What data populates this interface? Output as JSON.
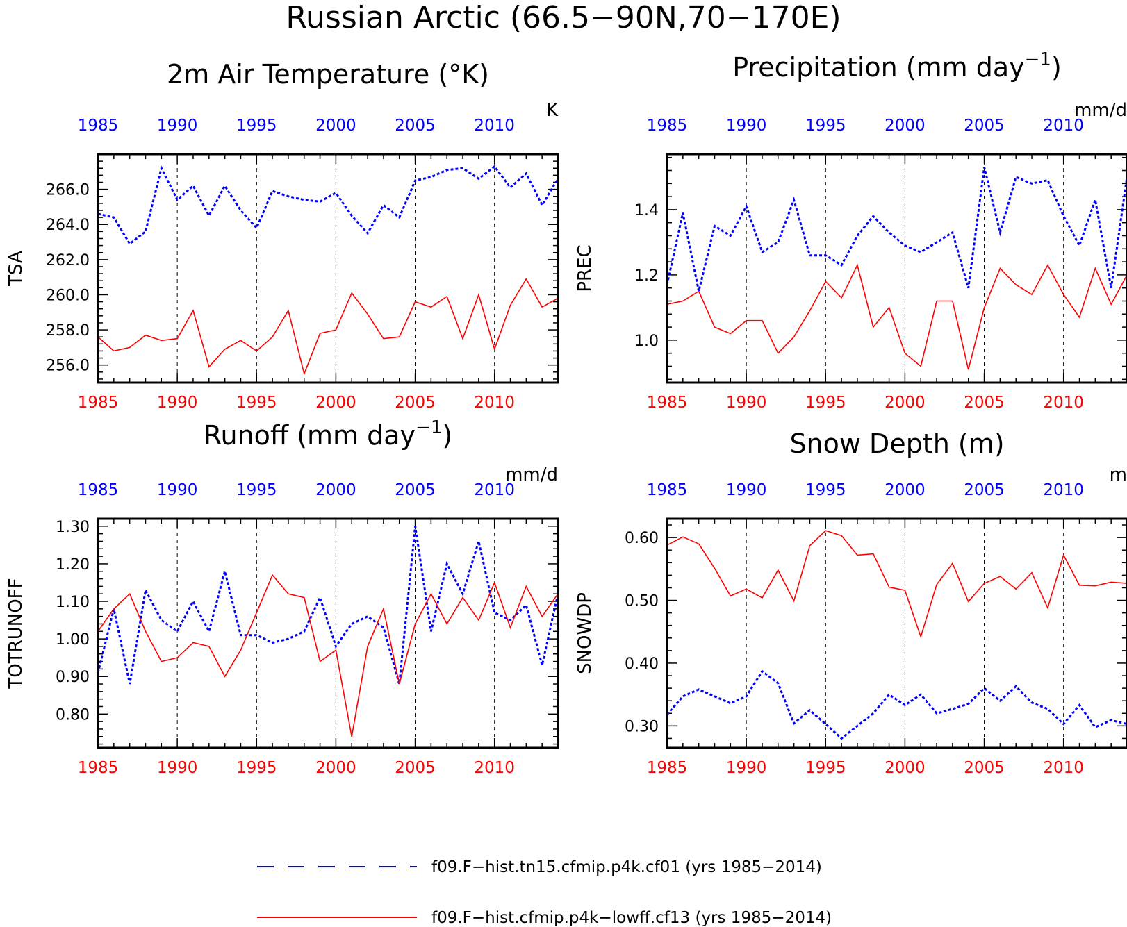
{
  "figure": {
    "title": "Russian Arctic (66.5−90N,70−170E)"
  },
  "colors": {
    "blue": "#0000ff",
    "red": "#ff0000",
    "axis": "#000000"
  },
  "legend": [
    {
      "label": "f09.F−hist.tn15.cfmip.p4k.cf01 (yrs 1985−2014)",
      "color": "#0000ff",
      "style": "dashed"
    },
    {
      "label": "f09.F−hist.cfmip.p4k−lowff.cf13 (yrs 1985−2014)",
      "color": "#ff0000",
      "style": "solid"
    }
  ],
  "chart_data": [
    {
      "type": "line",
      "title": "2m Air Temperature (°K)",
      "unit": "K",
      "ylabel": "TSA",
      "xlim": [
        1985,
        2014
      ],
      "ylim": [
        255.0,
        268.0
      ],
      "yticks": [
        256.0,
        258.0,
        260.0,
        262.0,
        264.0,
        266.0
      ],
      "ytick_labels": [
        "256.0",
        "258.0",
        "260.0",
        "262.0",
        "264.0",
        "266.0"
      ],
      "xticks": [
        1985,
        1990,
        1995,
        2000,
        2005,
        2010
      ],
      "xtick_labels": [
        "1985",
        "1990",
        "1995",
        "2000",
        "2005",
        "2010"
      ],
      "grid_x": [
        1990,
        1995,
        2000,
        2005,
        2010
      ],
      "x": [
        1985,
        1986,
        1987,
        1988,
        1989,
        1990,
        1991,
        1992,
        1993,
        1994,
        1995,
        1996,
        1997,
        1998,
        1999,
        2000,
        2001,
        2002,
        2003,
        2004,
        2005,
        2006,
        2007,
        2008,
        2009,
        2010,
        2011,
        2012,
        2013,
        2014
      ],
      "series": [
        {
          "color": "blue",
          "style": "dashed",
          "values": [
            264.6,
            264.4,
            262.9,
            263.6,
            267.2,
            265.4,
            266.2,
            264.5,
            266.2,
            264.8,
            263.8,
            265.9,
            265.6,
            265.4,
            265.3,
            265.8,
            264.5,
            263.5,
            265.1,
            264.4,
            266.5,
            266.7,
            267.1,
            267.2,
            266.6,
            267.3,
            266.1,
            266.9,
            265.1,
            266.6
          ]
        },
        {
          "color": "red",
          "style": "solid",
          "values": [
            257.6,
            256.8,
            257.0,
            257.7,
            257.4,
            257.5,
            259.1,
            255.9,
            256.9,
            257.4,
            256.8,
            257.6,
            259.1,
            255.5,
            257.8,
            258.0,
            260.1,
            258.9,
            257.5,
            257.6,
            259.6,
            259.3,
            259.9,
            257.5,
            260.0,
            256.9,
            259.4,
            260.9,
            259.3,
            259.8
          ]
        }
      ]
    },
    {
      "type": "line",
      "title": "Precipitation (mm day",
      "title_sup": "−1",
      "title_end": ")",
      "unit": "mm/d",
      "ylabel": "PREC",
      "xlim": [
        1985,
        2014
      ],
      "ylim": [
        0.87,
        1.57
      ],
      "yticks": [
        1.0,
        1.2,
        1.4
      ],
      "ytick_labels": [
        "1.0",
        "1.2",
        "1.4"
      ],
      "xticks": [
        1985,
        1990,
        1995,
        2000,
        2005,
        2010
      ],
      "xtick_labels": [
        "1985",
        "1990",
        "1995",
        "2000",
        "2005",
        "2010"
      ],
      "grid_x": [
        1990,
        1995,
        2000,
        2005,
        2010
      ],
      "x": [
        1985,
        1986,
        1987,
        1988,
        1989,
        1990,
        1991,
        1992,
        1993,
        1994,
        1995,
        1996,
        1997,
        1998,
        1999,
        2000,
        2001,
        2002,
        2003,
        2004,
        2005,
        2006,
        2007,
        2008,
        2009,
        2010,
        2011,
        2012,
        2013,
        2014
      ],
      "series": [
        {
          "color": "blue",
          "style": "dashed",
          "values": [
            1.17,
            1.39,
            1.15,
            1.35,
            1.32,
            1.41,
            1.27,
            1.3,
            1.43,
            1.26,
            1.26,
            1.23,
            1.32,
            1.38,
            1.33,
            1.29,
            1.27,
            1.3,
            1.33,
            1.16,
            1.53,
            1.33,
            1.5,
            1.48,
            1.49,
            1.38,
            1.29,
            1.43,
            1.16,
            1.5
          ]
        },
        {
          "color": "red",
          "style": "solid",
          "values": [
            1.11,
            1.12,
            1.15,
            1.04,
            1.02,
            1.06,
            1.06,
            0.96,
            1.01,
            1.09,
            1.18,
            1.13,
            1.23,
            1.04,
            1.1,
            0.96,
            0.92,
            1.12,
            1.12,
            0.91,
            1.1,
            1.22,
            1.17,
            1.14,
            1.23,
            1.14,
            1.07,
            1.22,
            1.11,
            1.2
          ]
        }
      ]
    },
    {
      "type": "line",
      "title": "Runoff (mm day",
      "title_sup": "−1",
      "title_end": ")",
      "unit": "mm/d",
      "ylabel": "TOTRUNOFF",
      "xlim": [
        1985,
        2014
      ],
      "ylim": [
        0.71,
        1.32
      ],
      "yticks": [
        0.8,
        0.9,
        1.0,
        1.1,
        1.2,
        1.3
      ],
      "ytick_labels": [
        "0.80",
        "0.90",
        "1.00",
        "1.10",
        "1.20",
        "1.30"
      ],
      "xticks": [
        1985,
        1990,
        1995,
        2000,
        2005,
        2010
      ],
      "xtick_labels": [
        "1985",
        "1990",
        "1995",
        "2000",
        "2005",
        "2010"
      ],
      "grid_x": [
        1990,
        1995,
        2000,
        2005,
        2010
      ],
      "x": [
        1985,
        1986,
        1987,
        1988,
        1989,
        1990,
        1991,
        1992,
        1993,
        1994,
        1995,
        1996,
        1997,
        1998,
        1999,
        2000,
        2001,
        2002,
        2003,
        2004,
        2005,
        2006,
        2007,
        2008,
        2009,
        2010,
        2011,
        2012,
        2013,
        2014
      ],
      "series": [
        {
          "color": "blue",
          "style": "dashed",
          "values": [
            0.91,
            1.08,
            0.88,
            1.13,
            1.05,
            1.02,
            1.1,
            1.02,
            1.18,
            1.01,
            1.01,
            0.99,
            1.0,
            1.02,
            1.11,
            0.98,
            1.04,
            1.06,
            1.03,
            0.88,
            1.3,
            1.02,
            1.2,
            1.12,
            1.26,
            1.07,
            1.05,
            1.09,
            0.93,
            1.12
          ]
        },
        {
          "color": "red",
          "style": "solid",
          "values": [
            1.02,
            1.08,
            1.12,
            1.02,
            0.94,
            0.95,
            0.99,
            0.98,
            0.9,
            0.97,
            1.07,
            1.17,
            1.12,
            1.11,
            0.94,
            0.97,
            0.74,
            0.98,
            1.08,
            0.88,
            1.04,
            1.12,
            1.04,
            1.11,
            1.05,
            1.15,
            1.03,
            1.14,
            1.06,
            1.12
          ]
        }
      ]
    },
    {
      "type": "line",
      "title": "Snow Depth (m)",
      "unit": "m",
      "ylabel": "SNOWDP",
      "xlim": [
        1985,
        2014
      ],
      "ylim": [
        0.265,
        0.63
      ],
      "yticks": [
        0.3,
        0.4,
        0.5,
        0.6
      ],
      "ytick_labels": [
        "0.30",
        "0.40",
        "0.50",
        "0.60"
      ],
      "xticks": [
        1985,
        1990,
        1995,
        2000,
        2005,
        2010
      ],
      "xtick_labels": [
        "1985",
        "1990",
        "1995",
        "2000",
        "2005",
        "2010"
      ],
      "grid_x": [
        1990,
        1995,
        2000,
        2005,
        2010
      ],
      "x": [
        1985,
        1986,
        1987,
        1988,
        1989,
        1990,
        1991,
        1992,
        1993,
        1994,
        1995,
        1996,
        1997,
        1998,
        1999,
        2000,
        2001,
        2002,
        2003,
        2004,
        2005,
        2006,
        2007,
        2008,
        2009,
        2010,
        2011,
        2012,
        2013,
        2014
      ],
      "series": [
        {
          "color": "blue",
          "style": "dashed",
          "values": [
            0.318,
            0.347,
            0.358,
            0.347,
            0.336,
            0.347,
            0.387,
            0.368,
            0.304,
            0.325,
            0.303,
            0.28,
            0.3,
            0.32,
            0.35,
            0.333,
            0.35,
            0.32,
            0.327,
            0.335,
            0.36,
            0.34,
            0.363,
            0.337,
            0.327,
            0.303,
            0.333,
            0.298,
            0.309,
            0.303
          ]
        },
        {
          "color": "red",
          "style": "solid",
          "values": [
            0.588,
            0.601,
            0.59,
            0.551,
            0.507,
            0.518,
            0.504,
            0.548,
            0.499,
            0.587,
            0.611,
            0.603,
            0.572,
            0.574,
            0.521,
            0.516,
            0.442,
            0.525,
            0.559,
            0.498,
            0.527,
            0.538,
            0.518,
            0.544,
            0.488,
            0.572,
            0.524,
            0.523,
            0.529,
            0.527
          ]
        }
      ]
    }
  ]
}
